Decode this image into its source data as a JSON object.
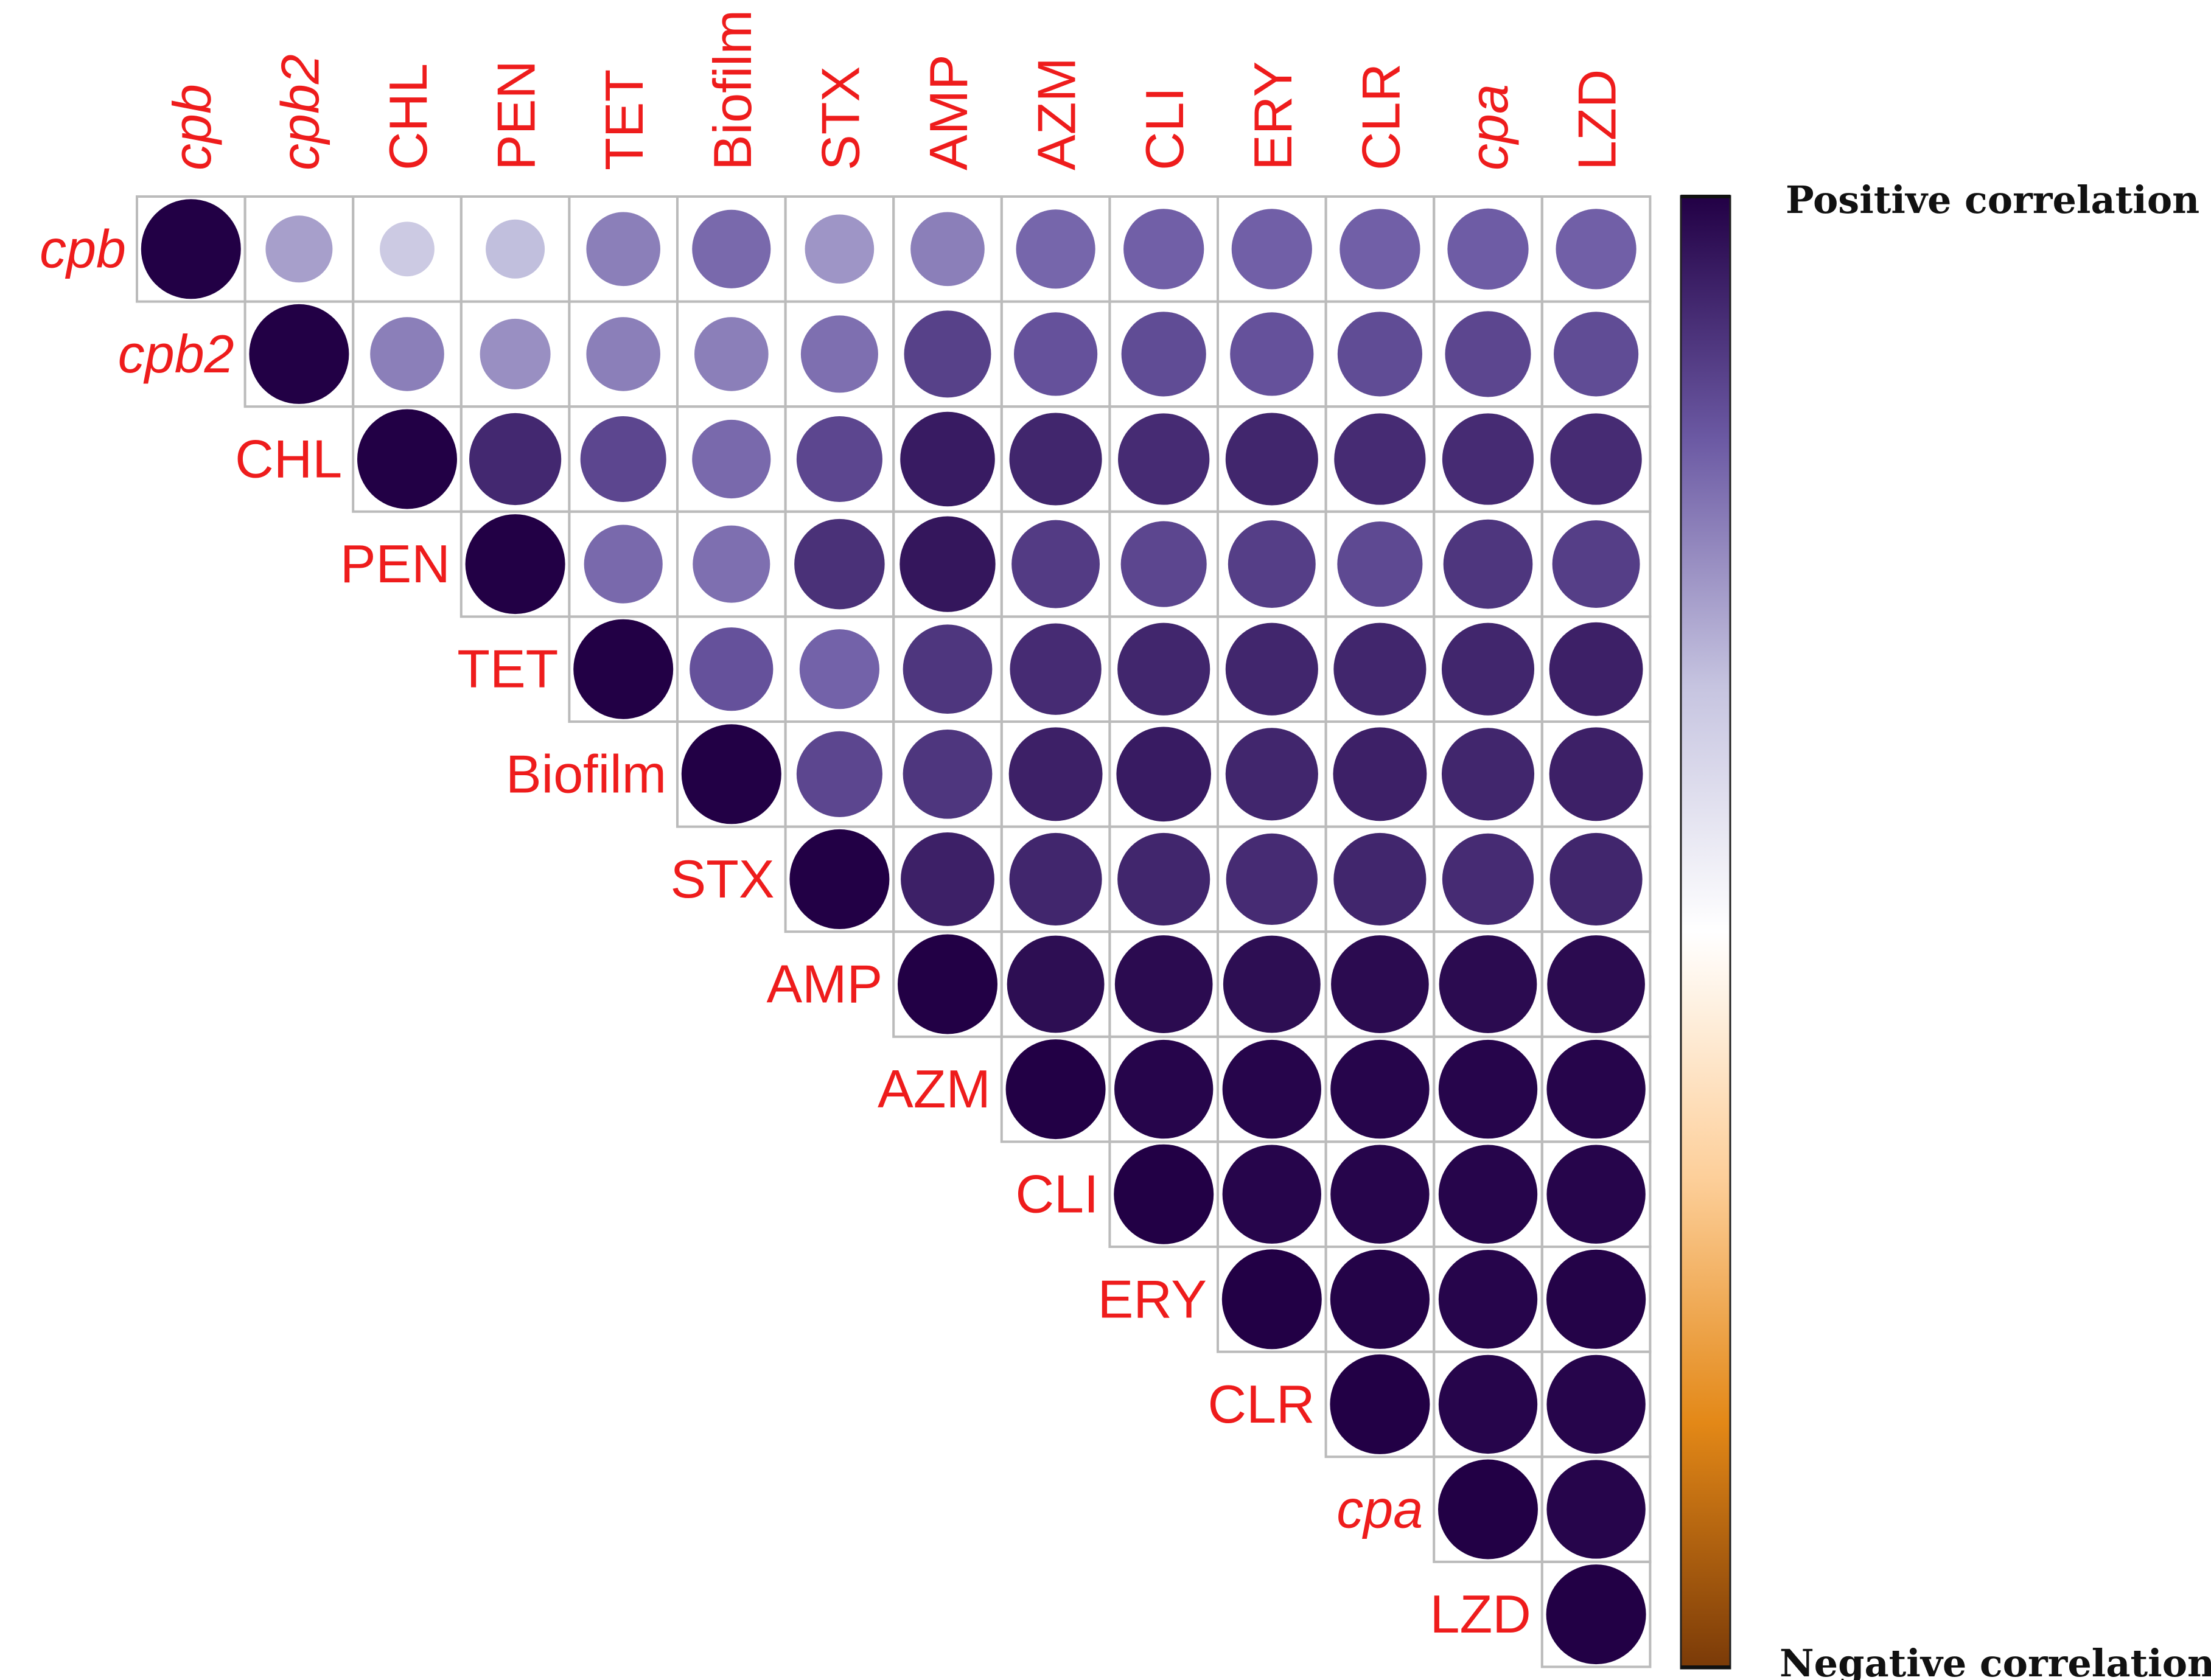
{
  "chart_data": {
    "type": "heatmap",
    "subtype": "correlation-matrix-upper-triangle",
    "variables": [
      "cpb",
      "cpb2",
      "CHL",
      "PEN",
      "TET",
      "Biofilm",
      "STX",
      "AMP",
      "AZM",
      "CLI",
      "ERY",
      "CLR",
      "cpa",
      "LZD"
    ],
    "italic_variables": [
      "cpb",
      "cpb2",
      "cpa"
    ],
    "value_range": [
      -1,
      1
    ],
    "matrix": [
      [
        1.0,
        0.45,
        0.3,
        0.35,
        0.55,
        0.62,
        0.48,
        0.55,
        0.63,
        0.65,
        0.65,
        0.65,
        0.66,
        0.65
      ],
      [
        null,
        1.0,
        0.55,
        0.5,
        0.55,
        0.55,
        0.6,
        0.76,
        0.7,
        0.72,
        0.7,
        0.72,
        0.74,
        0.72
      ],
      [
        null,
        null,
        1.0,
        0.85,
        0.74,
        0.62,
        0.74,
        0.9,
        0.86,
        0.84,
        0.86,
        0.84,
        0.84,
        0.84
      ],
      [
        null,
        null,
        null,
        1.0,
        0.62,
        0.6,
        0.82,
        0.92,
        0.78,
        0.74,
        0.77,
        0.73,
        0.8,
        0.77
      ],
      [
        null,
        null,
        null,
        null,
        1.0,
        0.7,
        0.64,
        0.8,
        0.84,
        0.86,
        0.86,
        0.86,
        0.86,
        0.88
      ],
      [
        null,
        null,
        null,
        null,
        null,
        1.0,
        0.74,
        0.8,
        0.88,
        0.9,
        0.86,
        0.88,
        0.86,
        0.88
      ],
      [
        null,
        null,
        null,
        null,
        null,
        null,
        1.0,
        0.88,
        0.86,
        0.86,
        0.84,
        0.86,
        0.84,
        0.86
      ],
      [
        null,
        null,
        null,
        null,
        null,
        null,
        null,
        1.0,
        0.95,
        0.96,
        0.95,
        0.96,
        0.96,
        0.96
      ],
      [
        null,
        null,
        null,
        null,
        null,
        null,
        null,
        null,
        1.0,
        0.98,
        0.98,
        0.98,
        0.98,
        0.98
      ],
      [
        null,
        null,
        null,
        null,
        null,
        null,
        null,
        null,
        null,
        1.0,
        0.98,
        0.98,
        0.98,
        0.98
      ],
      [
        null,
        null,
        null,
        null,
        null,
        null,
        null,
        null,
        null,
        null,
        1.0,
        0.99,
        0.98,
        0.99
      ],
      [
        null,
        null,
        null,
        null,
        null,
        null,
        null,
        null,
        null,
        null,
        null,
        1.0,
        0.98,
        0.98
      ],
      [
        null,
        null,
        null,
        null,
        null,
        null,
        null,
        null,
        null,
        null,
        null,
        null,
        1.0,
        0.98
      ],
      [
        null,
        null,
        null,
        null,
        null,
        null,
        null,
        null,
        null,
        null,
        null,
        null,
        null,
        1.0
      ]
    ],
    "colorbar": {
      "top_label": "Positive correlation",
      "bottom_label": "Negative correlation",
      "colors": [
        "#7a3a08",
        "#e38817",
        "#fdcf9a",
        "#ffffff",
        "#c6c4e0",
        "#6c5aa4",
        "#220045"
      ]
    },
    "label_color": "#ee1c1c",
    "grid_color": "#bbbbbb"
  }
}
